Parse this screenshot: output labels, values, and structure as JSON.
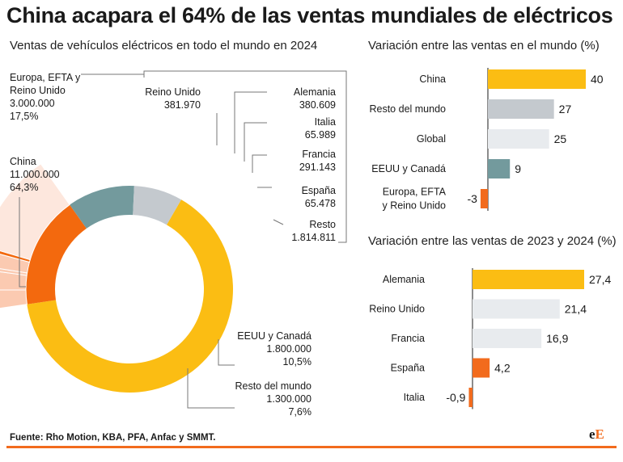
{
  "title": "China acapara el 64% de las ventas mundiales de eléctricos",
  "source": "Fuente: Rho Motion, KBA, PFA, Anfac y SMMT.",
  "logo": {
    "part1": "e",
    "part2": "E"
  },
  "colors": {
    "china": "#fbbd13",
    "europe": "#f3690e",
    "usa": "#739a9d",
    "rest_world": "#c4c9ce",
    "germany": "#fbcab1",
    "uk": "#fbcab1",
    "italy": "#fbcab1",
    "france": "#fbcab1",
    "spain": "#f3690e",
    "resto_eu": "#fde7dd",
    "bar_light": "#e8ebee",
    "accent": "#f26b1d"
  },
  "chart_data": [
    {
      "type": "pie",
      "title": "Ventas de vehículos eléctricos en todo el mundo en 2024",
      "segments": [
        {
          "name": "China",
          "value": 11000000,
          "value_label": "11.000.000",
          "pct": 64.3,
          "pct_label": "64,3%"
        },
        {
          "name": "Europa, EFTA y Reino Unido",
          "value": 3000000,
          "value_label": "3.000.000",
          "pct": 17.5,
          "pct_label": "17,5%"
        },
        {
          "name": "EEUU y Canadá",
          "value": 1800000,
          "value_label": "1.800.000",
          "pct": 10.5,
          "pct_label": "10,5%"
        },
        {
          "name": "Resto del mundo",
          "value": 1300000,
          "value_label": "1.300.000",
          "pct": 7.6,
          "pct_label": "7,6%"
        }
      ],
      "breakdown": [
        {
          "name": "Reino Unido",
          "value": 381970,
          "value_label": "381.970"
        },
        {
          "name": "Alemania",
          "value": 380609,
          "value_label": "380.609"
        },
        {
          "name": "Italia",
          "value": 65989,
          "value_label": "65.989"
        },
        {
          "name": "Francia",
          "value": 291143,
          "value_label": "291.143"
        },
        {
          "name": "España",
          "value": 65478,
          "value_label": "65.478"
        },
        {
          "name": "Resto",
          "value": 1814811,
          "value_label": "1.814.811"
        }
      ]
    },
    {
      "type": "bar",
      "orientation": "horizontal",
      "title": "Variación entre las ventas en el mundo (%)",
      "categories": [
        "China",
        "Resto del mundo",
        "Global",
        "EEUU y Canadá",
        "Europa, EFTA y Reino Unido"
      ],
      "category_lines": [
        [
          "China"
        ],
        [
          "Resto del mundo"
        ],
        [
          "Global"
        ],
        [
          "EEUU y Canadá"
        ],
        [
          "Europa, EFTA",
          "y Reino Unido"
        ]
      ],
      "values": [
        40,
        27,
        25,
        9,
        -3
      ],
      "value_labels": [
        "40",
        "27",
        "25",
        "9",
        "-3"
      ],
      "xlim": [
        -3,
        40
      ]
    },
    {
      "type": "bar",
      "orientation": "horizontal",
      "title": "Variación entre las ventas de 2023 y 2024 (%)",
      "categories": [
        "Alemania",
        "Reino Unido",
        "Francia",
        "España",
        "Italia"
      ],
      "category_lines": [
        [
          "Alemania"
        ],
        [
          "Reino Unido"
        ],
        [
          "Francia"
        ],
        [
          "España"
        ],
        [
          "Italia"
        ]
      ],
      "values": [
        27.4,
        21.4,
        16.9,
        4.2,
        -0.9
      ],
      "value_labels": [
        "27,4",
        "21,4",
        "16,9",
        "4,2",
        "-0,9"
      ],
      "xlim": [
        -0.9,
        27.4
      ]
    }
  ]
}
